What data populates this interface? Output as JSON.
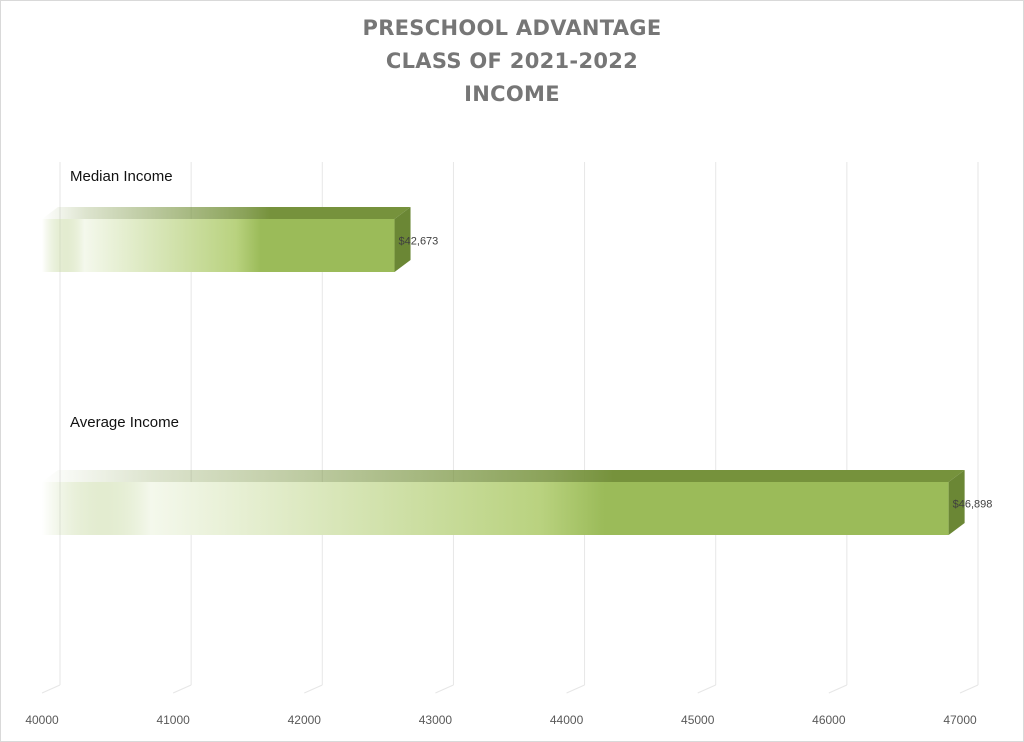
{
  "chart_data": {
    "type": "bar",
    "orientation": "horizontal",
    "style": "3d-gradient",
    "title_lines": [
      "PRESCHOOL ADVANTAGE",
      "CLASS OF 2021-2022",
      "INCOME"
    ],
    "categories": [
      "Median Income",
      "Average Income"
    ],
    "values": [
      42673,
      46898
    ],
    "data_labels": [
      "$42,673",
      "$46,898"
    ],
    "xlim": [
      40000,
      47000
    ],
    "xticks": [
      40000,
      41000,
      42000,
      43000,
      44000,
      45000,
      46000,
      47000
    ],
    "xtick_labels": [
      "40000",
      "41000",
      "42000",
      "43000",
      "44000",
      "45000",
      "46000",
      "47000"
    ],
    "grid": "vertical",
    "legend": "none",
    "colors": {
      "bar_front": "#9bbb59",
      "bar_top": "#76923c",
      "bar_side": "#6b8735",
      "grid": "#e6e6e6",
      "title": "#767676"
    }
  }
}
